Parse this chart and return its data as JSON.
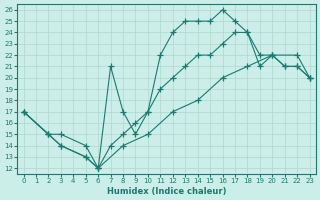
{
  "xlabel": "Humidex (Indice chaleur)",
  "bg_color": "#cceee8",
  "line_color": "#1a7a6e",
  "grid_color": "#b0d8cc",
  "xlim": [
    -0.5,
    23.5
  ],
  "ylim": [
    11.5,
    26.5
  ],
  "xticks": [
    0,
    1,
    2,
    3,
    4,
    5,
    6,
    7,
    8,
    9,
    10,
    11,
    12,
    13,
    14,
    15,
    16,
    17,
    18,
    19,
    20,
    21,
    22,
    23
  ],
  "yticks": [
    12,
    13,
    14,
    15,
    16,
    17,
    18,
    19,
    20,
    21,
    22,
    23,
    24,
    25,
    26
  ],
  "series": [
    {
      "x": [
        0,
        2,
        3,
        5,
        6,
        7,
        8,
        9,
        10,
        11,
        12,
        13,
        14,
        15,
        16,
        17,
        18,
        19,
        20,
        21,
        22,
        23
      ],
      "y": [
        17,
        15,
        15,
        14,
        12,
        21,
        17,
        15,
        17,
        22,
        24,
        25,
        25,
        25,
        26,
        25,
        24,
        22,
        22,
        21,
        21,
        20
      ]
    },
    {
      "x": [
        0,
        2,
        3,
        5,
        6,
        7,
        8,
        9,
        10,
        11,
        12,
        13,
        14,
        15,
        16,
        17,
        18,
        19,
        20,
        21,
        22,
        23
      ],
      "y": [
        17,
        15,
        14,
        13,
        12,
        14,
        15,
        16,
        17,
        19,
        20,
        21,
        22,
        22,
        23,
        24,
        24,
        21,
        22,
        21,
        21,
        20
      ]
    },
    {
      "x": [
        0,
        2,
        3,
        5,
        6,
        8,
        10,
        12,
        14,
        16,
        18,
        20,
        22,
        23
      ],
      "y": [
        17,
        15,
        14,
        13,
        12,
        14,
        15,
        17,
        18,
        20,
        21,
        22,
        22,
        20
      ]
    }
  ]
}
